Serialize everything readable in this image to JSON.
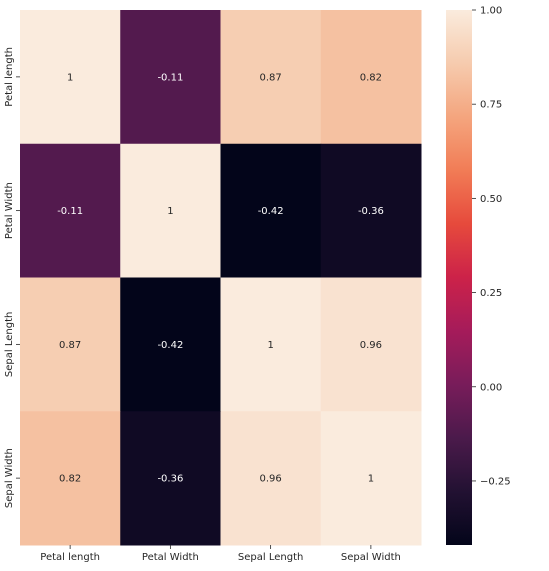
{
  "chart_data": {
    "type": "heatmap",
    "title": "",
    "xlabel": "",
    "ylabel": "",
    "x_categories": [
      "Petal length",
      "Petal Width",
      "Sepal Length",
      "Sepal Width"
    ],
    "y_categories": [
      "Petal length",
      "Petal Width",
      "Sepal Length",
      "Sepal Width"
    ],
    "values": [
      [
        1,
        -0.11,
        0.87,
        0.82
      ],
      [
        -0.11,
        1,
        -0.42,
        -0.36
      ],
      [
        0.87,
        -0.42,
        1,
        0.96
      ],
      [
        0.82,
        -0.36,
        0.96,
        1
      ]
    ],
    "annotations": [
      [
        "1",
        "-0.11",
        "0.87",
        "0.82"
      ],
      [
        "-0.11",
        "1",
        "-0.42",
        "-0.36"
      ],
      [
        "0.87",
        "-0.42",
        "1",
        "0.96"
      ],
      [
        "0.82",
        "-0.36",
        "0.96",
        "1"
      ]
    ],
    "colorscale": "rocket",
    "colorbar": {
      "vmin": -0.42,
      "vmax": 1.0,
      "ticks": [
        1.0,
        0.75,
        0.5,
        0.25,
        0.0,
        -0.25
      ],
      "tick_labels": [
        "1.00",
        "0.75",
        "0.50",
        "0.25",
        "0.00",
        "−0.25"
      ]
    },
    "grid": false,
    "legend": "colorbar-right"
  }
}
